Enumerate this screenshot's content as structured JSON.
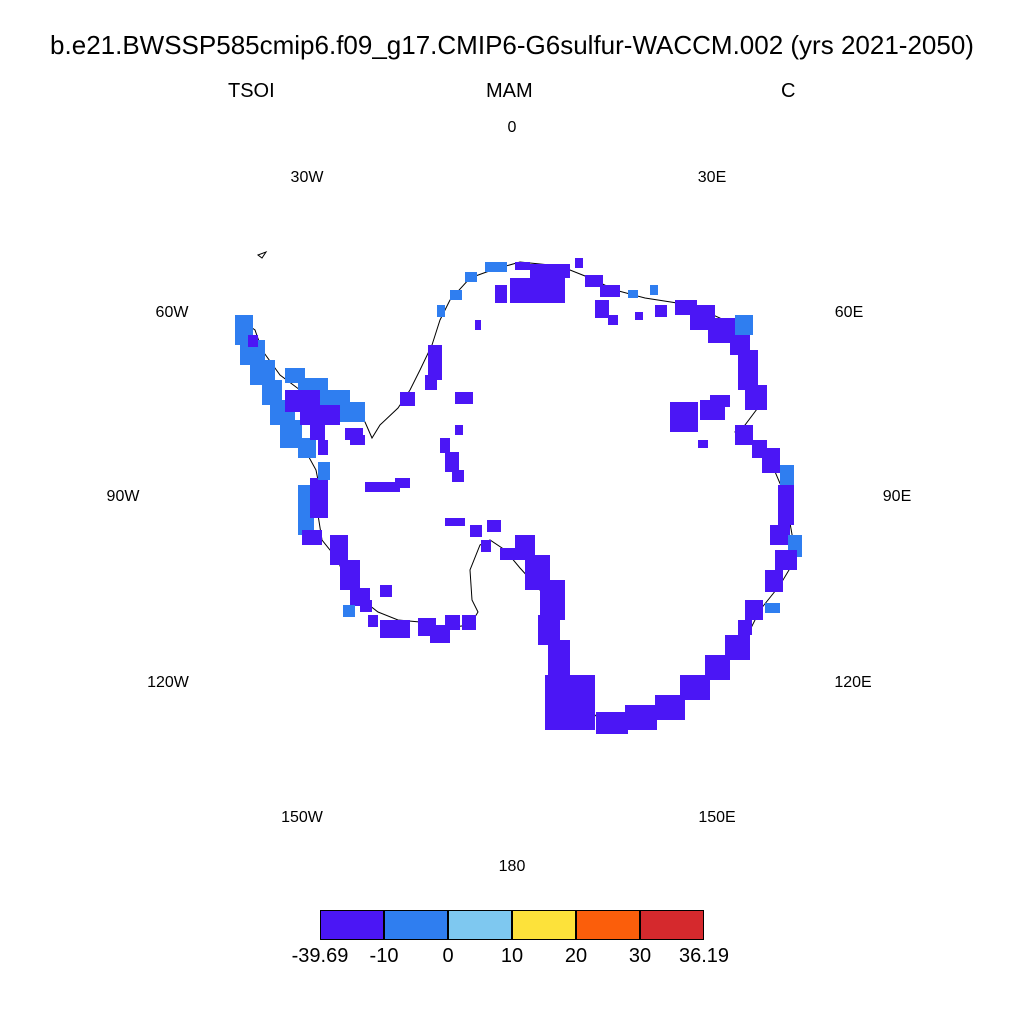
{
  "header": {
    "title": "b.e21.BWSSP585cmip6.f09_g17.CMIP6-G6sulfur-WACCM.002 (yrs 2021-2050)",
    "left": "TSOI",
    "center": "MAM",
    "right": "C"
  },
  "map": {
    "projection": "south-polar-stereographic",
    "longitude_labels": [
      "0",
      "30E",
      "60E",
      "90E",
      "120E",
      "150E",
      "180",
      "150W",
      "120W",
      "90W",
      "60W",
      "30W"
    ],
    "palette": {
      "c1": "#4b16f5",
      "c2": "#2f7ef0",
      "c3": "#7ec8f0",
      "c4": "#fde23a",
      "c5": "#fb5e0b",
      "c6": "#d5292d"
    }
  },
  "colorbar": {
    "labels": [
      "-39.69",
      "-10",
      "0",
      "10",
      "20",
      "30",
      "36.19"
    ],
    "colors": [
      "#4b16f5",
      "#2f7ef0",
      "#7ec8f0",
      "#fde23a",
      "#fb5e0b",
      "#d5292d"
    ]
  }
}
